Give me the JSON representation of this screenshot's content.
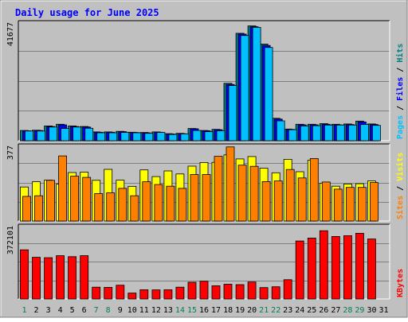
{
  "chart_data": {
    "type": "bar",
    "title": "Daily usage for June 2025",
    "categories": [
      "1",
      "2",
      "3",
      "4",
      "5",
      "6",
      "7",
      "8",
      "9",
      "10",
      "11",
      "12",
      "13",
      "14",
      "15",
      "16",
      "17",
      "18",
      "19",
      "20",
      "21",
      "22",
      "23",
      "24",
      "25",
      "26",
      "27",
      "28",
      "29",
      "30",
      "31"
    ],
    "weekend_days": [
      "1",
      "7",
      "8",
      "14",
      "15",
      "21",
      "22",
      "28",
      "29"
    ],
    "panels": [
      {
        "id": "top",
        "max_label": "41677",
        "ylim": [
          0,
          41677
        ],
        "grid": true,
        "legend": [
          {
            "label": "Pages",
            "color": "#00c0ff"
          },
          {
            "label": "Files",
            "color": "#0000ff"
          },
          {
            "label": "Hits",
            "color": "#008080"
          }
        ],
        "series": [
          {
            "name": "Hits",
            "color": "#008080",
            "values": [
              3600,
              3700,
              5200,
              5800,
              5200,
              5000,
              3100,
              3100,
              3300,
              3000,
              2900,
              3100,
              2500,
              2600,
              4300,
              3600,
              4000,
              20200,
              37800,
              40400,
              34000,
              7900,
              4100,
              5800,
              5800,
              6000,
              5800,
              5900,
              6900,
              5900,
              null
            ]
          },
          {
            "name": "Files",
            "color": "#0000ff",
            "values": [
              3500,
              3600,
              5000,
              5600,
              5000,
              4800,
              3000,
              3000,
              3200,
              2900,
              2800,
              3000,
              2400,
              2500,
              4200,
              3500,
              3900,
              19800,
              37500,
              40100,
              33500,
              7600,
              4000,
              5600,
              5600,
              5800,
              5600,
              5700,
              6600,
              5700,
              null
            ]
          },
          {
            "name": "Pages",
            "color": "#00c0ff",
            "values": [
              3400,
              3400,
              4800,
              4300,
              4800,
              4400,
              2800,
              2800,
              2900,
              2800,
              2600,
              2900,
              2200,
              2400,
              3600,
              3200,
              3500,
              19400,
              37000,
              39900,
              32800,
              7000,
              3900,
              5200,
              5300,
              5500,
              5500,
              5500,
              5700,
              5400,
              null
            ]
          }
        ]
      },
      {
        "id": "middle",
        "max_label": "377",
        "ylim": [
          0,
          377
        ],
        "grid": true,
        "legend": [
          {
            "label": "Sites",
            "color": "#ff8000"
          },
          {
            "label": "Visits",
            "color": "#ffff00"
          }
        ],
        "series": [
          {
            "name": "Visits",
            "color": "#ffff00",
            "values": [
              170,
              196,
              204,
              184,
              242,
              244,
              203,
              258,
              204,
              173,
              255,
              222,
              250,
              235,
              274,
              292,
              293,
              330,
              310,
              322,
              264,
              241,
              308,
              246,
              304,
              189,
              174,
              185,
              186,
              200,
              null
            ]
          },
          {
            "name": "Sites",
            "color": "#ff8000",
            "values": [
              123,
              126,
              203,
              325,
              224,
              218,
              137,
              141,
              163,
              126,
              196,
              182,
              174,
              163,
              232,
              232,
              323,
              370,
              279,
              273,
              197,
              200,
              257,
              215,
              312,
              195,
              159,
              168,
              168,
              192,
              null
            ]
          }
        ]
      },
      {
        "id": "bottom",
        "max_label": "372101",
        "ylim": [
          0,
          372101
        ],
        "grid": true,
        "legend": [
          {
            "label": "KBytes",
            "color": "#ff0000"
          }
        ],
        "series": [
          {
            "name": "KBytes",
            "color": "#ff0000",
            "values": [
              250000,
              212000,
              210000,
              220000,
              215000,
              220000,
              60000,
              59000,
              70000,
              30000,
              47000,
              46000,
              47000,
              60000,
              85000,
              90000,
              67000,
              75000,
              73000,
              86000,
              58000,
              62000,
              98000,
              295000,
              310000,
              347000,
              318000,
              322000,
              334000,
              305000,
              null
            ]
          }
        ]
      }
    ]
  }
}
